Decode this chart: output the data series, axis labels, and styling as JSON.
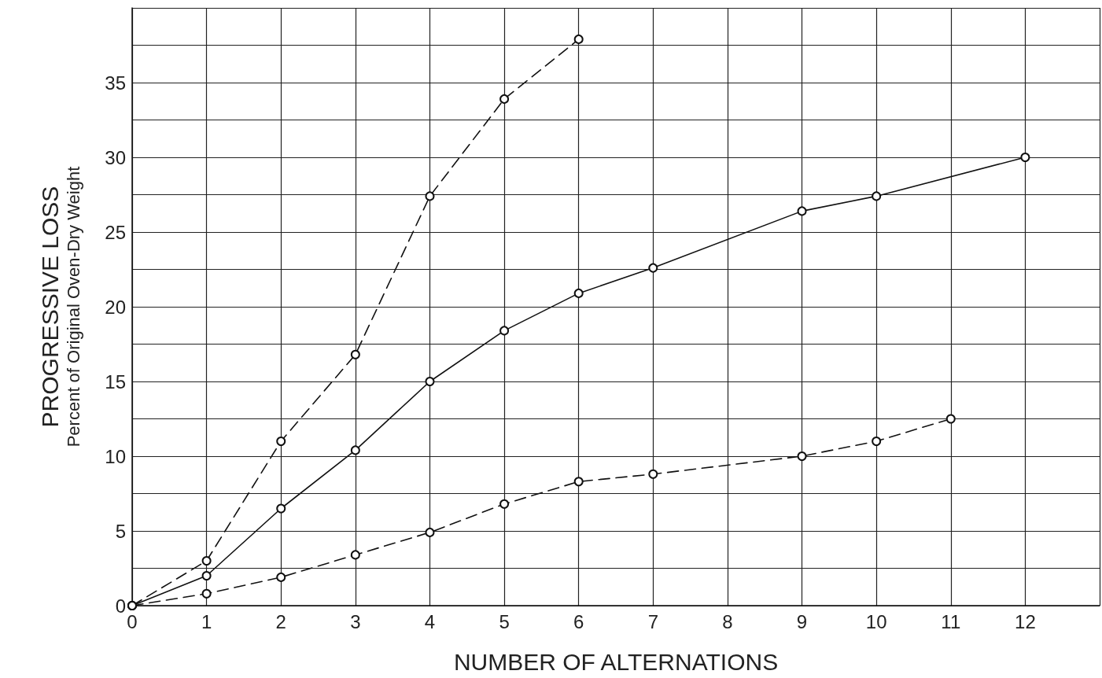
{
  "chart_data": {
    "type": "line",
    "xlabel": "NUMBER OF ALTERNATIONS",
    "ylabel": "PROGRESSIVE LOSS\nPercent of Original Oven-Dry Weight",
    "xlim": [
      0,
      13
    ],
    "xticks": [
      0,
      1,
      2,
      3,
      4,
      5,
      6,
      7,
      8,
      9,
      10,
      11,
      12,
      {
        "value": 13,
        "label": null
      }
    ],
    "ylim": [
      0,
      40
    ],
    "yticks": [
      0,
      {
        "value": 2.5,
        "label": null
      },
      5,
      {
        "value": 7.5,
        "label": null
      },
      10,
      {
        "value": 12.5,
        "label": null
      },
      15,
      {
        "value": 17.5,
        "label": null
      },
      20,
      {
        "value": 22.5,
        "label": null
      },
      25,
      {
        "value": 27.5,
        "label": null
      },
      30,
      {
        "value": 32.5,
        "label": null
      },
      35,
      {
        "value": 37.5,
        "label": null
      },
      {
        "value": 40,
        "label": null
      }
    ],
    "grid": true,
    "marker": "circle",
    "series": [
      {
        "color": "#111111",
        "line_style": "dashed",
        "x": [
          0,
          1,
          2,
          3,
          4,
          5,
          6
        ],
        "values": [
          0,
          3.0,
          11.0,
          16.8,
          27.4,
          33.9,
          37.9
        ]
      },
      {
        "color": "#111111",
        "line_style": "solid",
        "x": [
          0,
          1,
          2,
          3,
          4,
          5,
          6,
          7,
          9,
          10,
          12
        ],
        "values": [
          0,
          2.0,
          6.5,
          10.4,
          15.0,
          18.4,
          20.9,
          22.6,
          26.4,
          27.4,
          30.0
        ]
      },
      {
        "color": "#111111",
        "line_style": "dashed",
        "x": [
          0,
          1,
          2,
          3,
          4,
          5,
          6,
          7,
          9,
          10,
          11
        ],
        "values": [
          0,
          0.8,
          1.9,
          3.4,
          4.9,
          6.8,
          8.3,
          8.8,
          10.0,
          11.0,
          12.5
        ]
      }
    ]
  }
}
